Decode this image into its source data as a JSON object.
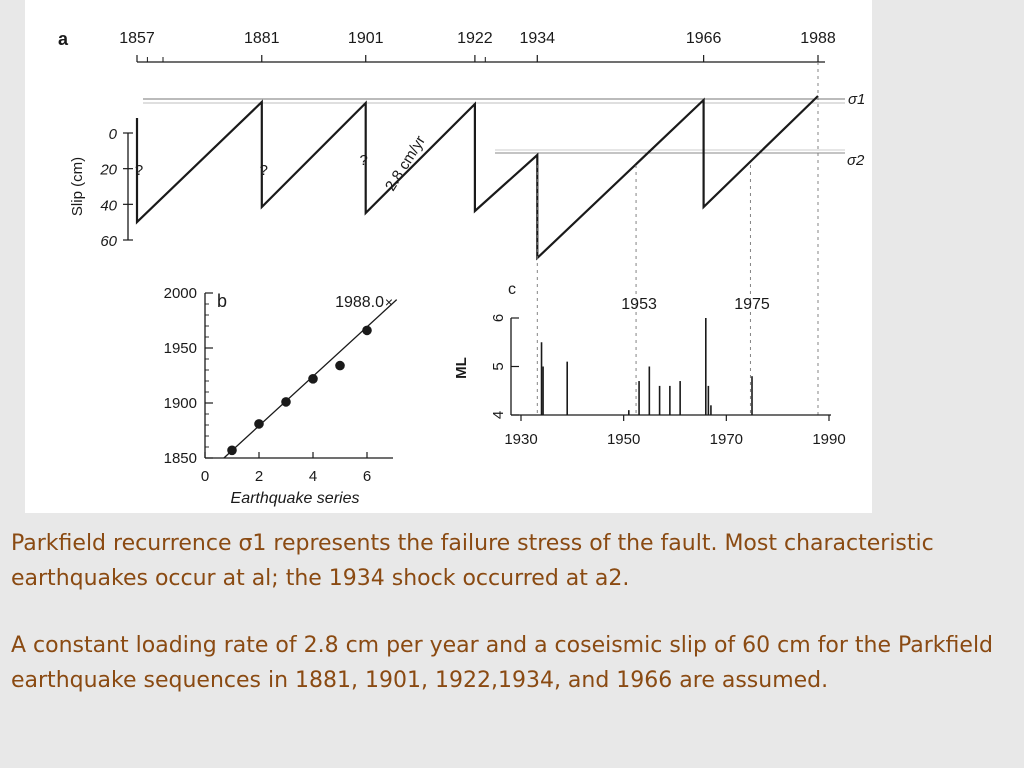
{
  "chart_data": [
    {
      "panel": "a",
      "type": "line",
      "title": "",
      "xlabel": "",
      "ylabel": "Slip (cm)",
      "ylim": [
        60,
        0
      ],
      "yticks": [
        "0",
        "20",
        "40",
        "60"
      ],
      "top_axis_labels": [
        1857,
        1881,
        1901,
        1922,
        1934,
        1966,
        1988
      ],
      "right_labels": [
        "σ1",
        "σ2"
      ],
      "rate_label": "2.8 cm/yr",
      "unknown_marker": "?",
      "sawtooth_events": [
        1857,
        1881,
        1901,
        1922,
        1934,
        1966
      ]
    },
    {
      "panel": "b",
      "type": "scatter",
      "xlabel": "Earthquake series",
      "ylabel": "",
      "xlim": [
        0,
        7
      ],
      "ylim": [
        1850,
        2000
      ],
      "xticks": [
        "0",
        "2",
        "4",
        "6"
      ],
      "yticks": [
        "1850",
        "1900",
        "1950",
        "2000"
      ],
      "x": [
        1,
        2,
        3,
        4,
        5,
        6
      ],
      "y": [
        1857,
        1881,
        1901,
        1922,
        1934,
        1966
      ],
      "prediction": {
        "x": 7,
        "y": 1988.0,
        "label": "1988.0"
      },
      "prediction_marker": "×"
    },
    {
      "panel": "c",
      "type": "bar",
      "xlabel": "",
      "ylabel": "ML",
      "xlim": [
        1930,
        1990
      ],
      "ylim": [
        4,
        6
      ],
      "xticks": [
        "1930",
        "1950",
        "1970",
        "1990"
      ],
      "yticks": [
        "4",
        "5",
        "6"
      ],
      "annotations": [
        "1953",
        "1975"
      ],
      "events": [
        {
          "x": 1934,
          "y": 5.5
        },
        {
          "x": 1934.3,
          "y": 5.0
        },
        {
          "x": 1939,
          "y": 5.1
        },
        {
          "x": 1951,
          "y": 4.1
        },
        {
          "x": 1953,
          "y": 4.7
        },
        {
          "x": 1955,
          "y": 5.0
        },
        {
          "x": 1957,
          "y": 4.6
        },
        {
          "x": 1959,
          "y": 4.6
        },
        {
          "x": 1961,
          "y": 4.7
        },
        {
          "x": 1966,
          "y": 6.0
        },
        {
          "x": 1966.5,
          "y": 4.6
        },
        {
          "x": 1967,
          "y": 4.2
        },
        {
          "x": 1975,
          "y": 4.8
        }
      ]
    }
  ],
  "caption": {
    "paragraph_1": "Parkfield recurrence σ1 represents the failure stress of the fault. Most characteristic earthquakes occur at al; the 1934 shock occurred at a2.",
    "paragraph_2": "A constant loading rate of 2.8 cm per year and a coseismic slip of 60 cm for the Parkfield earthquake sequences in 1881, 1901, 1922,1934, and 1966 are assumed."
  },
  "colors": {
    "ink": "#1a1a1a",
    "caption": "#8a4a12",
    "background": "#e8e8e8"
  }
}
